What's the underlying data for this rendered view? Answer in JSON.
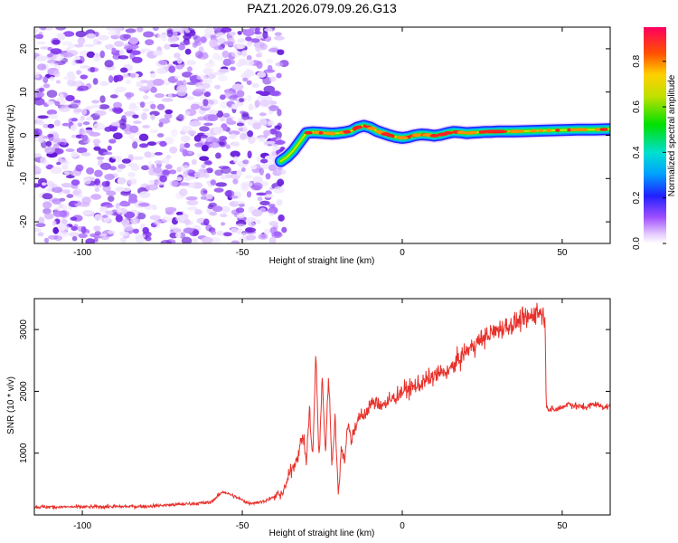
{
  "chart_data": [
    {
      "type": "heatmap",
      "title": "PAZ1.2026.079.09.26.G13",
      "xlabel": "Height of straight line (km)",
      "ylabel": "Frequency (Hz)",
      "xlim": [
        -115,
        65
      ],
      "ylim": [
        -25,
        25
      ],
      "xticks": [
        -100,
        -50,
        0,
        50
      ],
      "xtick_labels": [
        "-100",
        "-50",
        "0",
        "50"
      ],
      "yticks": [
        -20,
        -10,
        0,
        10,
        20
      ],
      "ytick_labels": [
        "-20",
        "-10",
        "0",
        "10",
        "20"
      ],
      "noise_region_x": [
        -115,
        -38
      ],
      "ridge": {
        "x": [
          -38,
          -36,
          -34,
          -32,
          -30,
          -28,
          -26,
          -24,
          -22,
          -20,
          -18,
          -16,
          -14,
          -12,
          -10,
          -8,
          -6,
          -4,
          -2,
          0,
          2,
          4,
          6,
          8,
          10,
          12,
          14,
          16,
          18,
          20,
          22,
          24,
          26,
          28,
          30,
          35,
          40,
          45,
          50,
          55,
          60,
          65
        ],
        "freq": [
          -6,
          -5,
          -3.5,
          -1.5,
          0.5,
          0.7,
          0.6,
          0.5,
          0.4,
          0.5,
          0.7,
          1,
          1.8,
          2.2,
          1.8,
          1,
          0.5,
          0,
          -0.4,
          -0.6,
          -0.4,
          0,
          0.2,
          0.1,
          -0.1,
          0.1,
          0.5,
          0.8,
          0.7,
          0.5,
          0.6,
          0.7,
          0.8,
          0.8,
          0.9,
          0.9,
          1,
          1.1,
          1.2,
          1.3,
          1.3,
          1.4
        ]
      },
      "colorbar": {
        "label": "Normalized spectral amplitude",
        "range": [
          0,
          0.95
        ],
        "ticks": [
          0,
          0.2,
          0.4,
          0.6,
          0.8
        ],
        "tick_labels": [
          "0.0",
          "0.2",
          "0.4",
          "0.6",
          "0.8"
        ]
      }
    },
    {
      "type": "line",
      "xlabel": "Height of straight line (km)",
      "ylabel": "SNR (10 * v/v)",
      "xlim": [
        -115,
        65
      ],
      "ylim": [
        0,
        3500
      ],
      "xticks": [
        -100,
        -50,
        0,
        50
      ],
      "xtick_labels": [
        "-100",
        "-50",
        "0",
        "50"
      ],
      "yticks": [
        1000,
        2000,
        3000
      ],
      "ytick_labels": [
        "1000",
        "2000",
        "3000"
      ],
      "series": [
        {
          "name": "SNR",
          "color": "#e8302a",
          "x": [
            -115,
            -100,
            -80,
            -60,
            -56,
            -52,
            -48,
            -44,
            -40,
            -37,
            -35,
            -33,
            -31,
            -30,
            -29,
            -28,
            -27,
            -26,
            -25,
            -24,
            -23,
            -22,
            -21,
            -20,
            -19,
            -18,
            -17,
            -16,
            -14,
            -12,
            -10,
            -5,
            0,
            5,
            10,
            15,
            20,
            25,
            30,
            35,
            40,
            42,
            44,
            44.6,
            45,
            46,
            48,
            50,
            52,
            55,
            58,
            60,
            63,
            65
          ],
          "y": [
            130,
            130,
            140,
            200,
            380,
            290,
            190,
            210,
            290,
            380,
            700,
            900,
            1300,
            850,
            1700,
            900,
            2600,
            900,
            2200,
            1000,
            2300,
            800,
            1600,
            300,
            1100,
            900,
            1500,
            1200,
            1550,
            1600,
            1800,
            1800,
            2000,
            2100,
            2250,
            2350,
            2650,
            2850,
            3000,
            3100,
            3200,
            3300,
            3250,
            3200,
            1800,
            1700,
            1700,
            1750,
            1800,
            1750,
            1750,
            1800,
            1750,
            1750
          ]
        }
      ]
    }
  ]
}
